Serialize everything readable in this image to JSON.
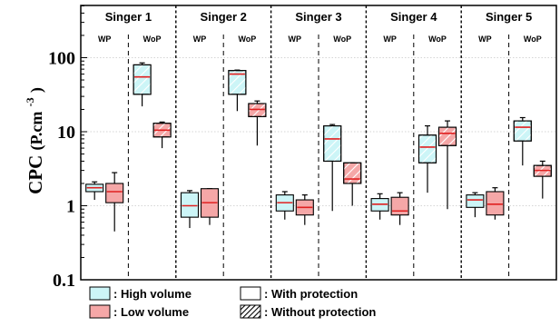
{
  "chart_data": {
    "type": "box",
    "ylabel": "CPC",
    "yunit": "(P.cm",
    "yunit_sup": "-3",
    "yunit_close": ")",
    "yscale": "log",
    "ylim": [
      0.1,
      400
    ],
    "yticks": [
      {
        "value": 0.1,
        "label": "0.1"
      },
      {
        "value": 1,
        "label": "1"
      },
      {
        "value": 10,
        "label": "10"
      },
      {
        "value": 100,
        "label": "100"
      }
    ],
    "gridlines": [
      1,
      10,
      100
    ],
    "colors": {
      "high_volume": "#ccf5f7",
      "low_volume": "#f5a7a7",
      "median": "#e02020",
      "hatch": "#ffffff"
    },
    "groups": [
      {
        "label": "Singer 1",
        "conditions": [
          {
            "label": "WP",
            "boxes": [
              {
                "series": "high",
                "min": 1.2,
                "q1": 1.55,
                "median": 1.75,
                "q3": 1.95,
                "max": 2.1
              },
              {
                "series": "low",
                "min": 0.45,
                "q1": 1.1,
                "median": 1.55,
                "q3": 2.0,
                "max": 2.8
              }
            ]
          },
          {
            "label": "WoP",
            "boxes": [
              {
                "series": "high",
                "min": 22,
                "q1": 32,
                "median": 55,
                "q3": 80,
                "max": 85
              },
              {
                "series": "low",
                "min": 6,
                "q1": 8.5,
                "median": 10.5,
                "q3": 13,
                "max": 13.5
              }
            ]
          }
        ]
      },
      {
        "label": "Singer 2",
        "conditions": [
          {
            "label": "WP",
            "boxes": [
              {
                "series": "high",
                "min": 0.5,
                "q1": 0.7,
                "median": 1.0,
                "q3": 1.5,
                "max": 1.6
              },
              {
                "series": "low",
                "min": 0.55,
                "q1": 0.7,
                "median": 1.1,
                "q3": 1.7,
                "max": 1.7
              }
            ]
          },
          {
            "label": "WoP",
            "boxes": [
              {
                "series": "high",
                "min": 19,
                "q1": 32,
                "median": 60,
                "q3": 67,
                "max": 68
              },
              {
                "series": "low",
                "min": 6.5,
                "q1": 16,
                "median": 20,
                "q3": 24,
                "max": 26
              }
            ]
          }
        ]
      },
      {
        "label": "Singer 3",
        "conditions": [
          {
            "label": "WP",
            "boxes": [
              {
                "series": "high",
                "min": 0.65,
                "q1": 0.85,
                "median": 1.1,
                "q3": 1.4,
                "max": 1.55
              },
              {
                "series": "low",
                "min": 0.55,
                "q1": 0.75,
                "median": 0.95,
                "q3": 1.2,
                "max": 1.4
              }
            ]
          },
          {
            "label": "WoP",
            "boxes": [
              {
                "series": "high",
                "min": 0.85,
                "q1": 4.0,
                "median": 8.0,
                "q3": 12,
                "max": 12.5
              },
              {
                "series": "low",
                "min": 1.0,
                "q1": 2.0,
                "median": 2.3,
                "q3": 3.8,
                "max": 3.8
              }
            ]
          }
        ]
      },
      {
        "label": "Singer 4",
        "conditions": [
          {
            "label": "WP",
            "boxes": [
              {
                "series": "high",
                "min": 0.65,
                "q1": 0.85,
                "median": 1.05,
                "q3": 1.25,
                "max": 1.45
              },
              {
                "series": "low",
                "min": 0.55,
                "q1": 0.75,
                "median": 0.85,
                "q3": 1.3,
                "max": 1.5
              }
            ]
          },
          {
            "label": "WoP",
            "boxes": [
              {
                "series": "high",
                "min": 1.5,
                "q1": 3.8,
                "median": 6.2,
                "q3": 9.0,
                "max": 12
              },
              {
                "series": "low",
                "min": 0.9,
                "q1": 6.5,
                "median": 9.5,
                "q3": 11.5,
                "max": 14
              }
            ]
          }
        ]
      },
      {
        "label": "Singer 5",
        "conditions": [
          {
            "label": "WP",
            "boxes": [
              {
                "series": "high",
                "min": 0.7,
                "q1": 0.95,
                "median": 1.2,
                "q3": 1.4,
                "max": 1.5
              },
              {
                "series": "low",
                "min": 0.65,
                "q1": 0.75,
                "median": 1.05,
                "q3": 1.55,
                "max": 1.75
              }
            ]
          },
          {
            "label": "WoP",
            "boxes": [
              {
                "series": "high",
                "min": 3.5,
                "q1": 7.5,
                "median": 11.5,
                "q3": 14,
                "max": 15.5
              },
              {
                "series": "low",
                "min": 1.25,
                "q1": 2.5,
                "median": 3.0,
                "q3": 3.5,
                "max": 4.0
              }
            ]
          }
        ]
      }
    ],
    "legend": [
      {
        "key": "high",
        "label": ": High volume"
      },
      {
        "key": "low",
        "label": ": Low volume"
      },
      {
        "key": "wp",
        "label": ": With protection"
      },
      {
        "key": "wop",
        "label": ": Without protection"
      }
    ]
  }
}
